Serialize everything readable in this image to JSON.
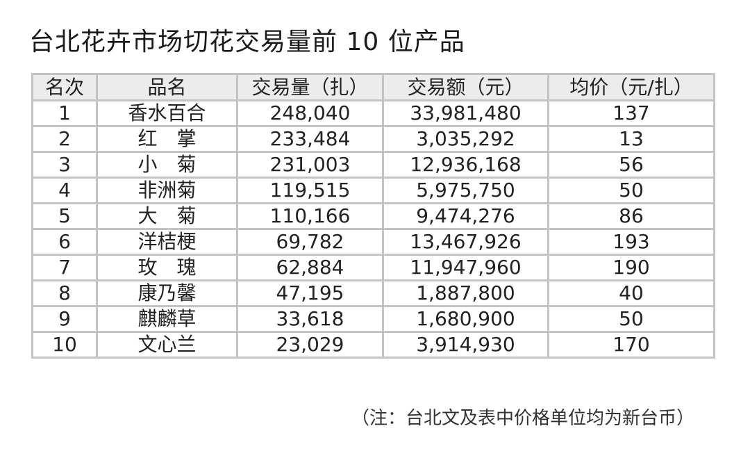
{
  "title": "台北花卉市场切花交易量前 10 位产品",
  "table": {
    "headers": [
      "名次",
      "品名",
      "交易量（扎）",
      "交易额（元）",
      "均价（元/扎）"
    ],
    "rows": [
      [
        "1",
        "香水百合",
        "248,040",
        "33,981,480",
        "137"
      ],
      [
        "2",
        "红　掌",
        "233,484",
        "3,035,292",
        "13"
      ],
      [
        "3",
        "小　菊",
        "231,003",
        "12,936,168",
        "56"
      ],
      [
        "4",
        "非洲菊",
        "119,515",
        "5,975,750",
        "50"
      ],
      [
        "5",
        "大　菊",
        "110,166",
        "9,474,276",
        "86"
      ],
      [
        "6",
        "洋桔梗",
        "69,782",
        "13,467,926",
        "193"
      ],
      [
        "7",
        "玫　瑰",
        "62,884",
        "11,947,960",
        "190"
      ],
      [
        "8",
        "康乃馨",
        "47,195",
        "1,887,800",
        "40"
      ],
      [
        "9",
        "麒麟草",
        "33,618",
        "1,680,900",
        "50"
      ],
      [
        "10",
        "文心兰",
        "23,029",
        "3,914,930",
        "170"
      ]
    ]
  },
  "note": "（注：台北文及表中价格单位均为新台币）"
}
